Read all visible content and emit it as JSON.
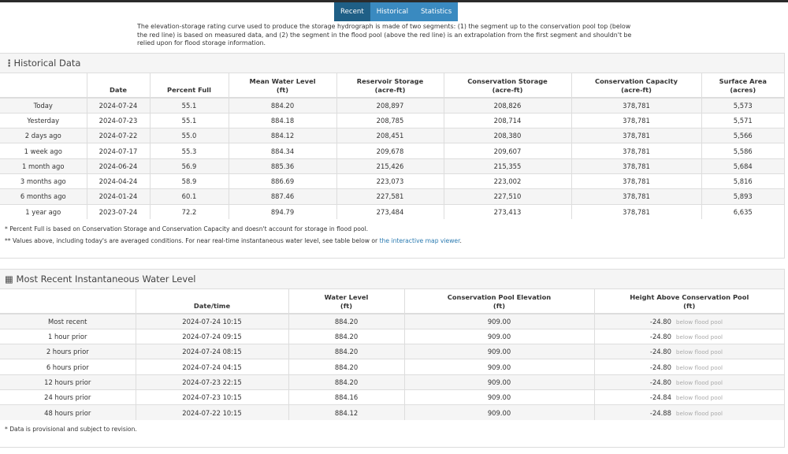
{
  "tabs": [
    "Recent",
    "Historical",
    "Statistics"
  ],
  "active_tab": 0,
  "intro": "The elevation-storage rating curve used to produce the storage hydrograph is made of two segments: (1) the segment up to the conservation pool top (below the red line) is based on measured data, and (2) the segment in the flood pool (above the red line) is an extrapolation from the first segment and shouldn't be relied upon for flood storage information.",
  "historical": {
    "title": "Historical Data",
    "icon": "vertical-ellipsis-icon",
    "columns": [
      [
        "",
        ""
      ],
      [
        "Date",
        ""
      ],
      [
        "Percent Full",
        ""
      ],
      [
        "Mean Water Level",
        "(ft)"
      ],
      [
        "Reservoir Storage",
        "(acre-ft)"
      ],
      [
        "Conservation Storage",
        "(acre-ft)"
      ],
      [
        "Conservation Capacity",
        "(acre-ft)"
      ],
      [
        "Surface Area",
        "(acres)"
      ]
    ],
    "rows": [
      [
        "Today",
        "2024-07-24",
        "55.1",
        "884.20",
        "208,897",
        "208,826",
        "378,781",
        "5,573"
      ],
      [
        "Yesterday",
        "2024-07-23",
        "55.1",
        "884.18",
        "208,785",
        "208,714",
        "378,781",
        "5,571"
      ],
      [
        "2 days ago",
        "2024-07-22",
        "55.0",
        "884.12",
        "208,451",
        "208,380",
        "378,781",
        "5,566"
      ],
      [
        "1 week ago",
        "2024-07-17",
        "55.3",
        "884.34",
        "209,678",
        "209,607",
        "378,781",
        "5,586"
      ],
      [
        "1 month ago",
        "2024-06-24",
        "56.9",
        "885.36",
        "215,426",
        "215,355",
        "378,781",
        "5,684"
      ],
      [
        "3 months ago",
        "2024-04-24",
        "58.9",
        "886.69",
        "223,073",
        "223,002",
        "378,781",
        "5,816"
      ],
      [
        "6 months ago",
        "2024-01-24",
        "60.1",
        "887.46",
        "227,581",
        "227,510",
        "378,781",
        "5,893"
      ],
      [
        "1 year ago",
        "2023-07-24",
        "72.2",
        "894.79",
        "273,484",
        "273,413",
        "378,781",
        "6,635"
      ]
    ],
    "note1": "* Percent Full is based on Conservation Storage and Conservation Capacity and doesn't account for storage in flood pool.",
    "note2": "** Values above, including today's are averaged conditions. For near real-time instantaneous water level, see table below or ",
    "note2_link": "the interactive map viewer",
    "note2_end": "."
  },
  "instant": {
    "title": "Most Recent Instantaneous Water Level",
    "icon": "table-icon",
    "columns": [
      [
        "",
        ""
      ],
      [
        "Date/time",
        ""
      ],
      [
        "Water Level",
        "(ft)"
      ],
      [
        "Conservation Pool Elevation",
        "(ft)"
      ],
      [
        "Height Above Conservation Pool",
        "(ft)"
      ]
    ],
    "rows": [
      [
        "Most recent",
        "2024-07-24 10:15",
        "884.20",
        "909.00",
        "-24.80",
        "below flood pool"
      ],
      [
        "1 hour prior",
        "2024-07-24 09:15",
        "884.20",
        "909.00",
        "-24.80",
        "below flood pool"
      ],
      [
        "2 hours prior",
        "2024-07-24 08:15",
        "884.20",
        "909.00",
        "-24.80",
        "below flood pool"
      ],
      [
        "6 hours prior",
        "2024-07-24 04:15",
        "884.20",
        "909.00",
        "-24.80",
        "below flood pool"
      ],
      [
        "12 hours prior",
        "2024-07-23 22:15",
        "884.20",
        "909.00",
        "-24.80",
        "below flood pool"
      ],
      [
        "24 hours prior",
        "2024-07-23 10:15",
        "884.16",
        "909.00",
        "-24.84",
        "below flood pool"
      ],
      [
        "48 hours prior",
        "2024-07-22 10:15",
        "884.12",
        "909.00",
        "-24.88",
        "below flood pool"
      ]
    ],
    "note": "* Data is provisional and subject to revision."
  }
}
